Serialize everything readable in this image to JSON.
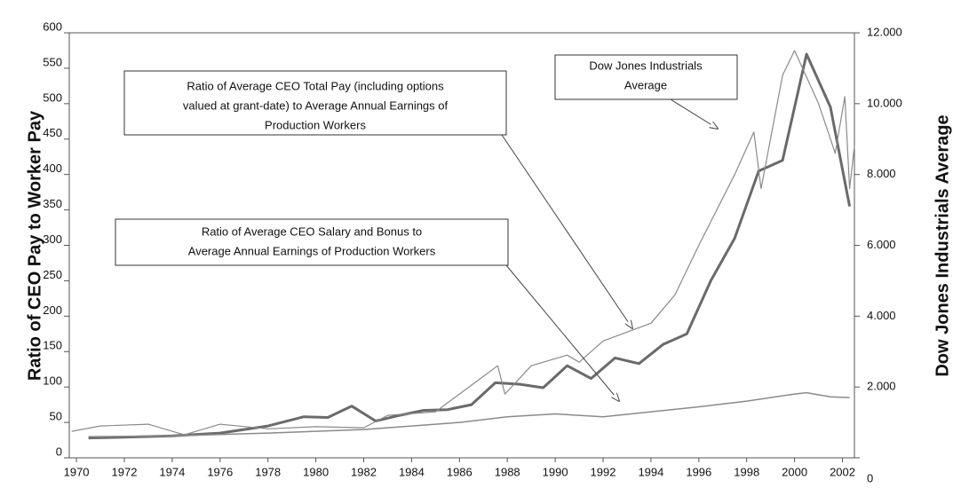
{
  "chart_data": {
    "type": "line",
    "y_label": "Ratio of CEO Pay to Worker Pay",
    "y2_label": "Dow Jones Industrials Average",
    "xlim": [
      1969.7,
      2002.5
    ],
    "xticks": [
      1970,
      1972,
      1974,
      1976,
      1978,
      1980,
      1982,
      1984,
      1986,
      1988,
      1990,
      1992,
      1994,
      1996,
      1998,
      2000,
      2002
    ],
    "ylim": [
      0,
      600
    ],
    "yticks": [
      0,
      50,
      100,
      150,
      200,
      250,
      300,
      350,
      400,
      450,
      500,
      550,
      600
    ],
    "y2lim": [
      0,
      12000
    ],
    "y2ticks": [
      0,
      {
        "value": 2000,
        "label": "2.000"
      },
      {
        "value": 4000,
        "label": "4.000"
      },
      {
        "value": 6000,
        "label": "6.000"
      },
      {
        "value": 8000,
        "label": "8.000"
      },
      {
        "value": 10000,
        "label": "10.000"
      },
      {
        "value": 12000,
        "label": "12.000"
      }
    ],
    "series": [
      {
        "name": "Ratio of Average CEO Total Pay (including options valued at grant-date) to Average Annual Earnings of Production Workers",
        "color": "#6a6a6a",
        "width": 3,
        "x": [
          1970.5,
          1972,
          1974,
          1976,
          1978,
          1979.5,
          1980.5,
          1981.5,
          1982.5,
          1983.5,
          1984.5,
          1985.5,
          1986.5,
          1987.5,
          1988.5,
          1989.5,
          1990.5,
          1991.5,
          1992.5,
          1993.5,
          1994.5,
          1995.5,
          1996.5,
          1997.5,
          1998.5,
          1999.5,
          2000.5,
          2001.5,
          2002.3
        ],
        "values": [
          28,
          29,
          31,
          35,
          45,
          58,
          57,
          73,
          52,
          60,
          67,
          68,
          75,
          106,
          104,
          99,
          130,
          112,
          141,
          133,
          160,
          175,
          250,
          310,
          405,
          420,
          570,
          495,
          355
        ]
      },
      {
        "name": "Ratio of Average CEO Salary and Bonus to Average Annual Earnings of Production Workers",
        "color": "#8a8a8a",
        "width": 1.5,
        "x": [
          1970.5,
          1974,
          1978,
          1982,
          1986,
          1988,
          1990,
          1992,
          1994,
          1996,
          1998,
          2000,
          2000.5,
          2001.5,
          2002.3
        ],
        "values": [
          30,
          31,
          35,
          40,
          50,
          58,
          62,
          58,
          65,
          72,
          80,
          90,
          92,
          86,
          85
        ]
      },
      {
        "name": "Dow Jones Industrials Average",
        "color": "#8a8a8a",
        "width": 1.2,
        "axis": "y2",
        "x": [
          1969.8,
          1971,
          1973,
          1974.5,
          1976,
          1978,
          1980,
          1982,
          1983,
          1985,
          1986,
          1987.6,
          1987.9,
          1989,
          1990.5,
          1991,
          1992,
          1994,
          1995,
          1996,
          1997.5,
          1998.3,
          1998.6,
          1999.5,
          2000,
          2001,
          2001.7,
          2002.1,
          2002.3,
          2002.5
        ],
        "values": [
          750,
          900,
          950,
          650,
          950,
          820,
          880,
          850,
          1200,
          1300,
          1800,
          2600,
          1800,
          2600,
          2900,
          2700,
          3300,
          3800,
          4600,
          6000,
          8000,
          9200,
          7600,
          10800,
          11500,
          10000,
          8600,
          10200,
          7600,
          8800
        ]
      }
    ],
    "annotations": [
      {
        "lines": [
          "Dow Jones Industrials",
          "Average"
        ]
      },
      {
        "lines": [
          "Ratio of Average CEO Total Pay (including options",
          "valued at grant-date) to Average Annual Earnings of",
          "Production Workers"
        ]
      },
      {
        "lines": [
          "Ratio of Average CEO Salary and Bonus to",
          "Average Annual Earnings of Production Workers"
        ]
      }
    ]
  }
}
